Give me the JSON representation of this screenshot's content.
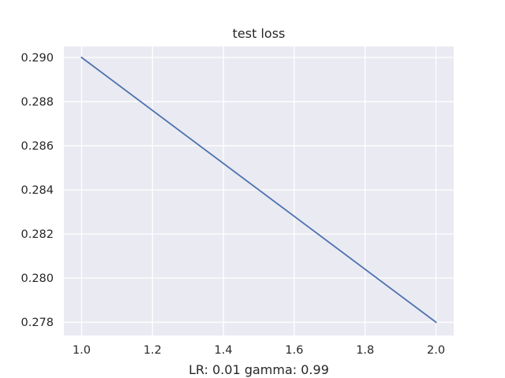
{
  "chart_data": {
    "type": "line",
    "title": "test loss",
    "xlabel": "LR: 0.01 gamma: 0.99",
    "ylabel": "",
    "xlim": [
      0.95,
      2.05
    ],
    "ylim": [
      0.2774,
      0.2905
    ],
    "xticks": [
      1.0,
      1.2,
      1.4,
      1.6,
      1.8,
      2.0
    ],
    "xtick_labels": [
      "1.0",
      "1.2",
      "1.4",
      "1.6",
      "1.8",
      "2.0"
    ],
    "yticks": [
      0.278,
      0.28,
      0.282,
      0.284,
      0.286,
      0.288,
      0.29
    ],
    "ytick_labels": [
      "0.278",
      "0.280",
      "0.282",
      "0.284",
      "0.286",
      "0.288",
      "0.290"
    ],
    "grid": true,
    "legend": "none",
    "colors": {
      "background": "#eaeaf2",
      "grid": "#ffffff",
      "line": "#4c72b0"
    },
    "series": [
      {
        "x": [
          1.0,
          2.0
        ],
        "y": [
          0.29,
          0.278
        ]
      }
    ]
  }
}
